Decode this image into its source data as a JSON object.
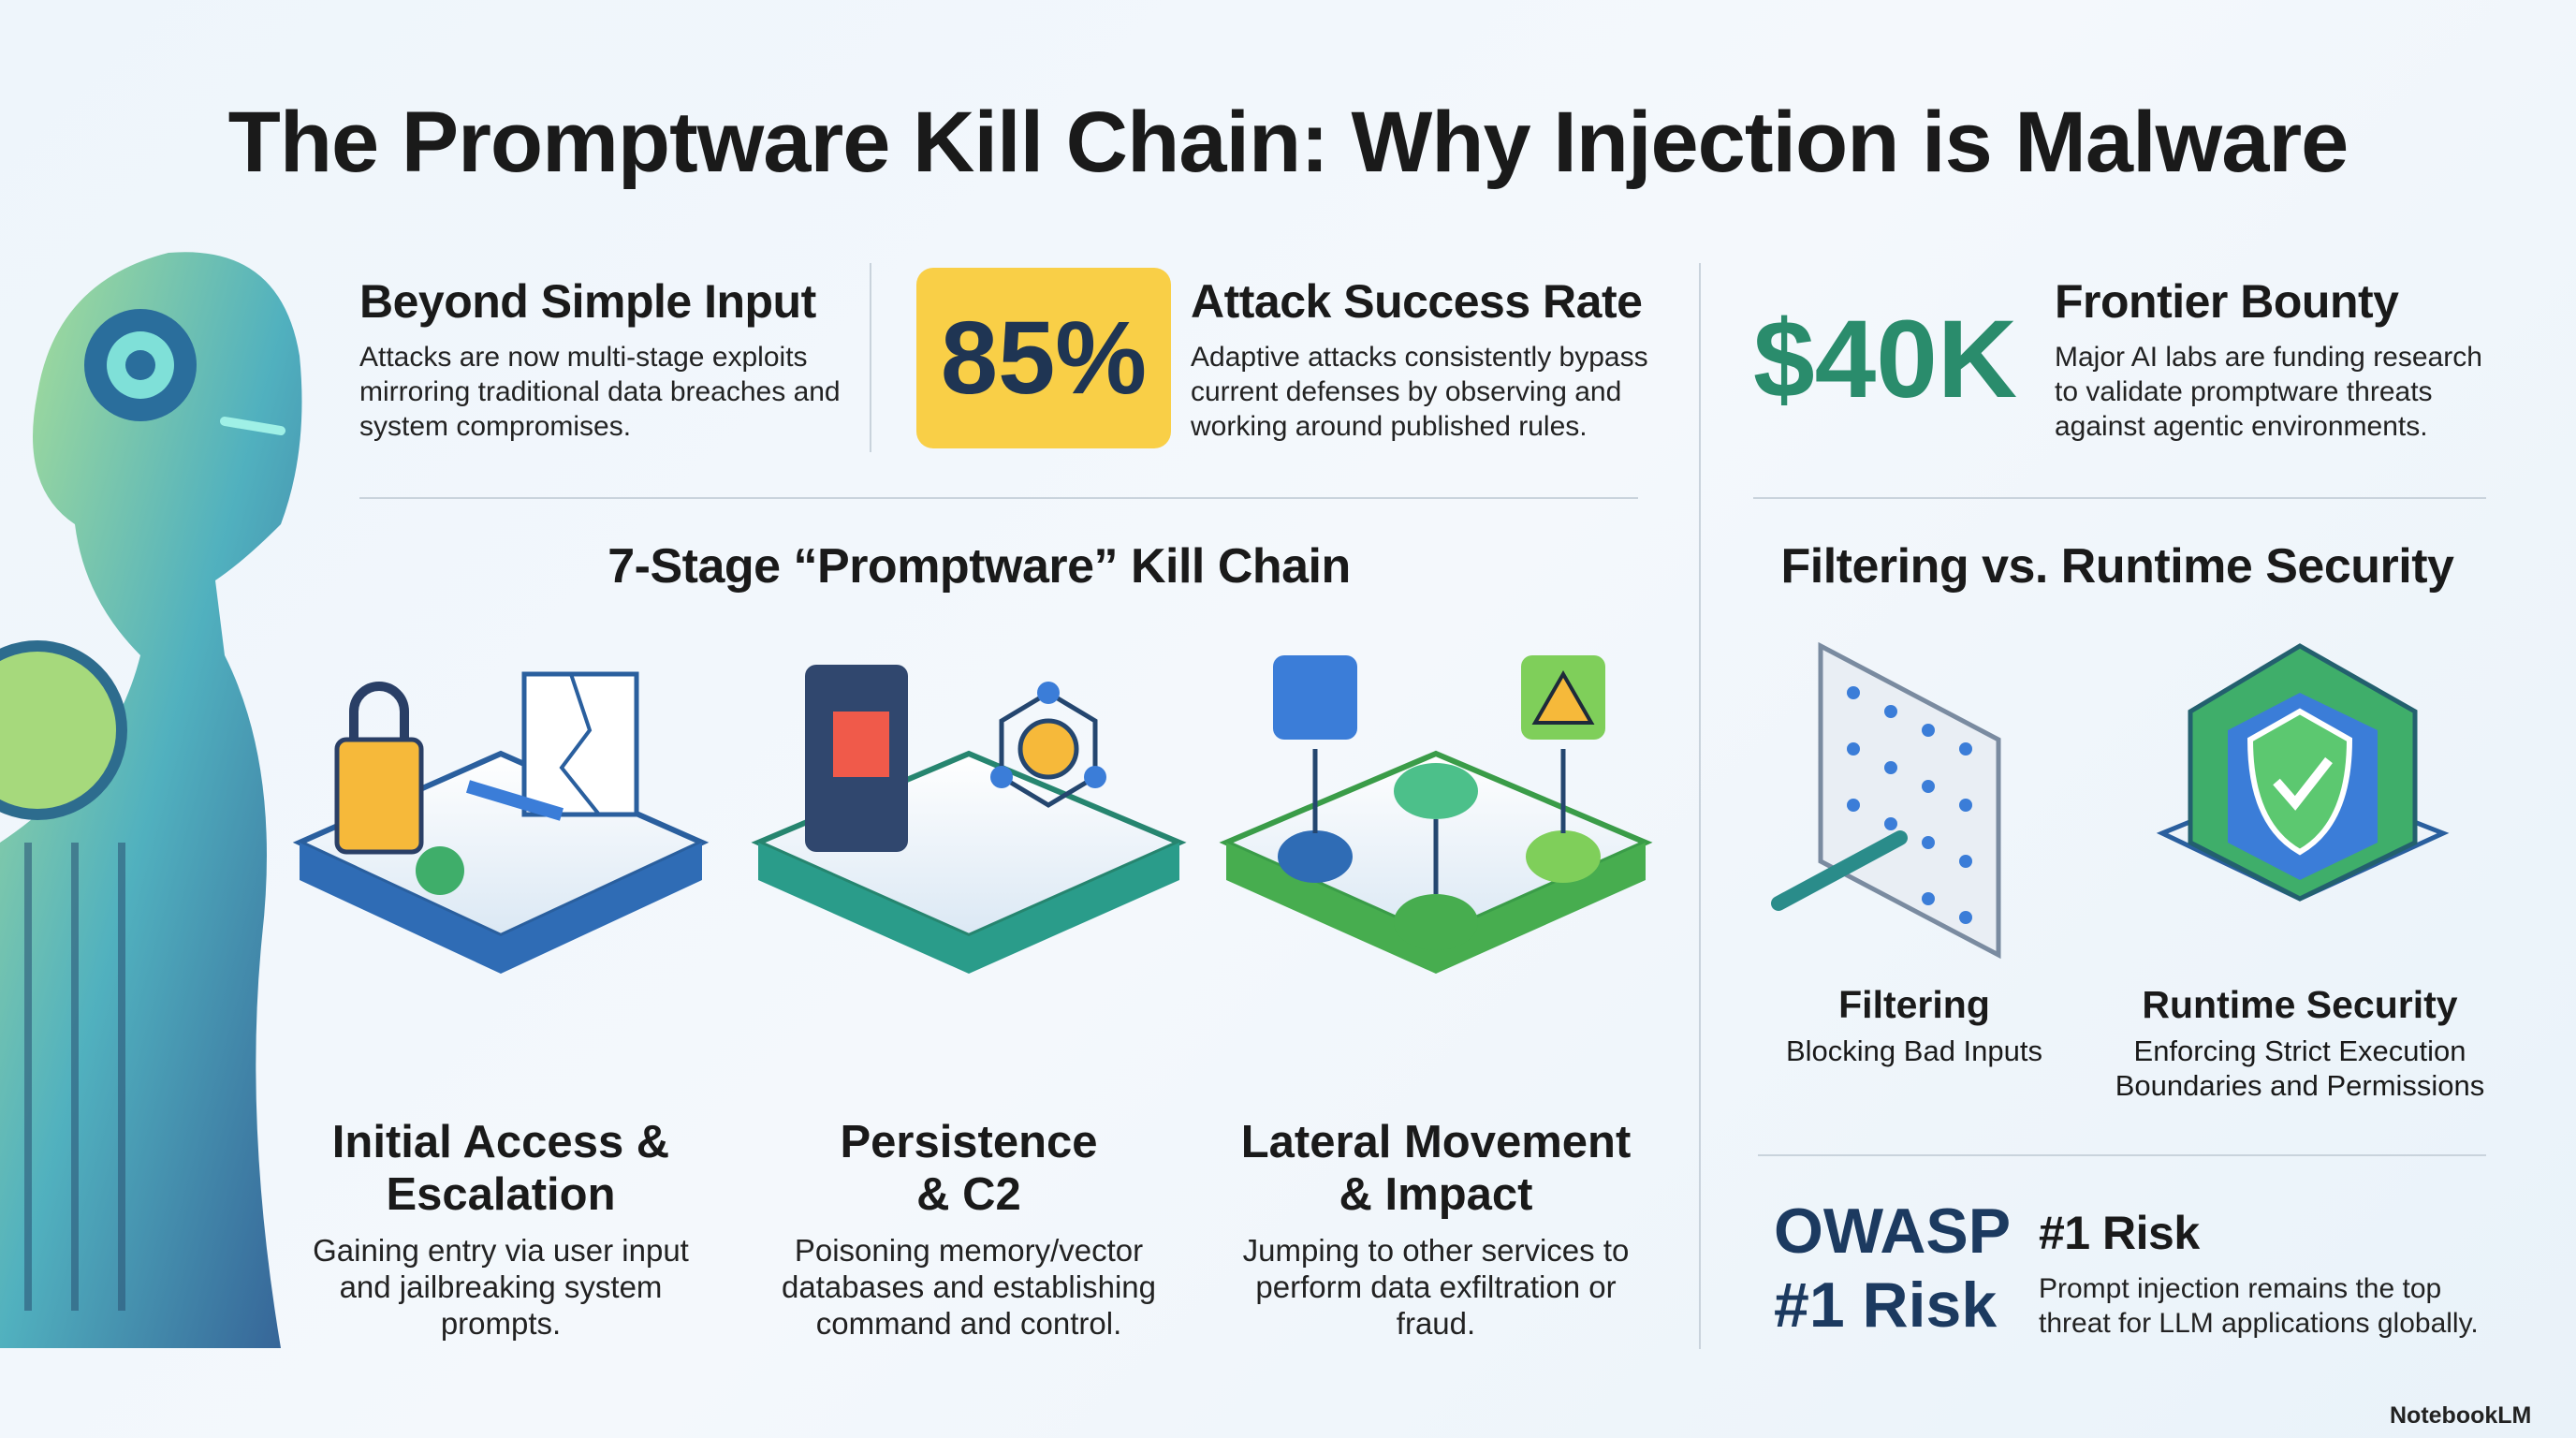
{
  "title": "The Promptware Kill Chain: Why Injection is Malware",
  "highlights": [
    {
      "heading": "Beyond Simple Input",
      "text": "Attacks are now multi-stage exploits mirroring traditional data breaches and system compromises."
    },
    {
      "stat": "85%",
      "heading": "Attack Success Rate",
      "text": "Adaptive attacks consistently bypass current defenses by observing and working around published rules."
    },
    {
      "stat": "$40K",
      "heading": "Frontier Bounty",
      "text": "Major AI labs are funding research to validate promptware threats against agentic environments."
    }
  ],
  "kill_chain": {
    "heading": "7-Stage “Promptware” Kill Chain",
    "stages": [
      {
        "title": "Initial Access & Escalation",
        "text": "Gaining entry via user input and jailbreaking system prompts."
      },
      {
        "title": "Persistence & C2",
        "text": "Poisoning memory/vector databases and establishing command and control."
      },
      {
        "title": "Lateral Movement & Impact",
        "text": "Jumping to other services to perform data exfiltration or fraud."
      }
    ]
  },
  "comparison": {
    "heading": "Filtering vs. Runtime Security",
    "items": [
      {
        "title": "Filtering",
        "text": "Blocking Bad Inputs"
      },
      {
        "title": "Runtime Security",
        "text": "Enforcing Strict Execution Boundaries and Permissions"
      }
    ]
  },
  "risk": {
    "stat": "OWASP #1 Risk",
    "heading": "#1 Risk",
    "text": "Prompt injection remains the top threat for LLM applications globally."
  },
  "footer": {
    "brand": "NotebookLM"
  }
}
